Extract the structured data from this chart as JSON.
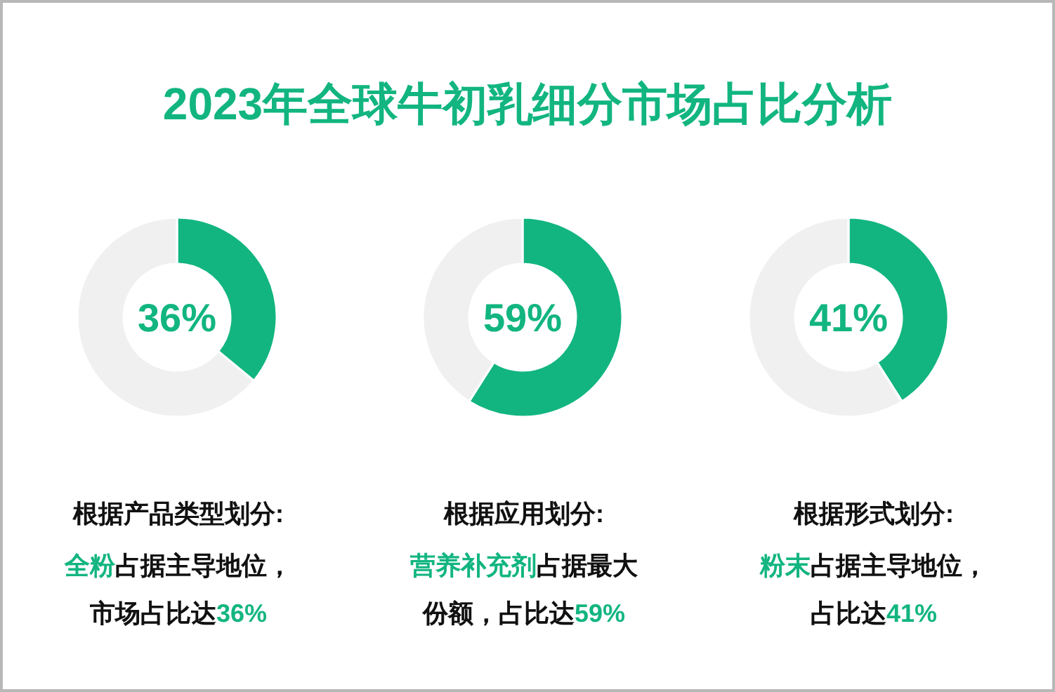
{
  "chart_data": [
    {
      "type": "donut",
      "title": "2023年全球牛初乳细分市场占比分析",
      "categories": [
        null,
        null
      ],
      "values": [
        36,
        64
      ],
      "colors": [
        "#12b580",
        "#f0f0f0"
      ],
      "xlabel": "根据产品类型划分:",
      "annotations": [
        "36%",
        "全粉",
        "占据主导地位，",
        "市场占比达",
        "36%"
      ]
    },
    {
      "type": "donut",
      "categories": [
        null,
        null
      ],
      "values": [
        59,
        41
      ],
      "colors": [
        "#12b580",
        "#f0f0f0"
      ],
      "xlabel": "根据应用划分:",
      "annotations": [
        "59%",
        "营养补充剂",
        "占据最大",
        "份额，占比达",
        "59%"
      ]
    },
    {
      "type": "donut",
      "categories": [
        null,
        null
      ],
      "values": [
        41,
        59
      ],
      "colors": [
        "#12b580",
        "#f0f0f0"
      ],
      "xlabel": "根据形式划分:",
      "annotations": [
        "41%",
        "粉末",
        "占据主导地位，",
        "占比达",
        "41%"
      ]
    }
  ]
}
